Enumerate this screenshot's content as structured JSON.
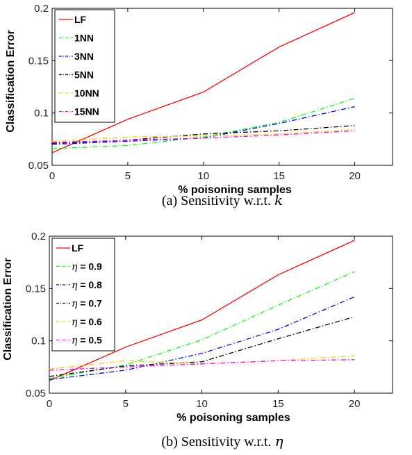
{
  "chart_data": [
    {
      "type": "line",
      "caption": "(a) Sensitivity w.r.t. ",
      "caption_symbol": "k",
      "xlabel": "% poisoning samples",
      "ylabel": "Classification Error",
      "xlim": [
        0,
        22.5
      ],
      "ylim": [
        0.05,
        0.2
      ],
      "xticks": [
        0,
        5,
        10,
        15,
        20
      ],
      "yticks": [
        0.05,
        0.1,
        0.15,
        0.2
      ],
      "ytick_labels": [
        "0.05",
        "0.1",
        "0.15",
        "0.2"
      ],
      "legend_position": "top-left",
      "x": [
        0,
        5,
        10,
        15,
        20
      ],
      "series": [
        {
          "name": "LF",
          "prefix": "",
          "color": "#ff0000",
          "dash": "solid",
          "values": [
            0.062,
            0.094,
            0.12,
            0.163,
            0.196
          ]
        },
        {
          "name": "1NN",
          "prefix": "",
          "color": "#00ff00",
          "dash": "dashdot",
          "values": [
            0.066,
            0.069,
            0.077,
            0.091,
            0.114
          ]
        },
        {
          "name": "3NN",
          "prefix": "",
          "color": "#0000ff",
          "dash": "dashdot",
          "values": [
            0.07,
            0.073,
            0.076,
            0.09,
            0.106
          ]
        },
        {
          "name": "5NN",
          "prefix": "",
          "color": "#000000",
          "dash": "dashdot",
          "values": [
            0.071,
            0.074,
            0.08,
            0.083,
            0.088
          ]
        },
        {
          "name": "10NN",
          "prefix": "",
          "color": "#ffcc00",
          "dash": "dashdot",
          "values": [
            0.073,
            0.077,
            0.078,
            0.08,
            0.084
          ]
        },
        {
          "name": "15NN",
          "prefix": "",
          "color": "#ff00ff",
          "dash": "dashdot",
          "values": [
            0.072,
            0.074,
            0.076,
            0.079,
            0.083
          ]
        }
      ]
    },
    {
      "type": "line",
      "caption": "(b) Sensitivity w.r.t. ",
      "caption_symbol": "η",
      "xlabel": "% poisoning samples",
      "ylabel": "Classification Error",
      "xlim": [
        0,
        22.5
      ],
      "ylim": [
        0.05,
        0.2
      ],
      "xticks": [
        0,
        5,
        10,
        15,
        20
      ],
      "yticks": [
        0.05,
        0.1,
        0.15,
        0.2
      ],
      "ytick_labels": [
        "0.05",
        "0.1",
        "0.15",
        "0.2"
      ],
      "legend_position": "top-left",
      "x": [
        0,
        5,
        10,
        15,
        20
      ],
      "series": [
        {
          "name": "LF",
          "prefix": "",
          "color": "#ff0000",
          "dash": "solid",
          "values": [
            0.062,
            0.094,
            0.12,
            0.163,
            0.196
          ]
        },
        {
          "name": " = 0.9",
          "prefix": "η",
          "color": "#00ff00",
          "dash": "dashdot",
          "values": [
            0.064,
            0.077,
            0.101,
            0.134,
            0.166
          ]
        },
        {
          "name": " = 0.8",
          "prefix": "η",
          "color": "#0000ff",
          "dash": "dashdot",
          "values": [
            0.063,
            0.072,
            0.088,
            0.111,
            0.142
          ]
        },
        {
          "name": " = 0.7",
          "prefix": "η",
          "color": "#000000",
          "dash": "dashdot",
          "values": [
            0.066,
            0.076,
            0.08,
            0.102,
            0.123
          ]
        },
        {
          "name": " = 0.6",
          "prefix": "η",
          "color": "#ffcc00",
          "dash": "dashdot",
          "values": [
            0.073,
            0.081,
            0.078,
            0.081,
            0.086
          ]
        },
        {
          "name": " = 0.5",
          "prefix": "η",
          "color": "#ff00ff",
          "dash": "dashdot",
          "values": [
            0.072,
            0.075,
            0.078,
            0.081,
            0.082
          ]
        }
      ]
    }
  ]
}
